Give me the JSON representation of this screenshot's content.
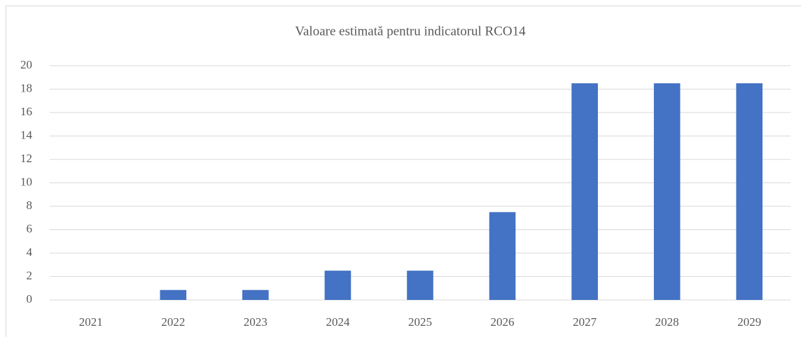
{
  "chart_data": {
    "type": "bar",
    "title": "Valoare estimată pentru indicatorul RCO14",
    "categories": [
      "2021",
      "2022",
      "2023",
      "2024",
      "2025",
      "2026",
      "2027",
      "2028",
      "2029"
    ],
    "values": [
      0,
      0.85,
      0.85,
      2.5,
      2.5,
      7.5,
      18.5,
      18.5,
      18.5
    ],
    "color": "#4472c4",
    "ylim": [
      0,
      20
    ],
    "yticks": [
      0,
      2,
      4,
      6,
      8,
      10,
      12,
      14,
      16,
      18,
      20
    ],
    "grid": true
  }
}
